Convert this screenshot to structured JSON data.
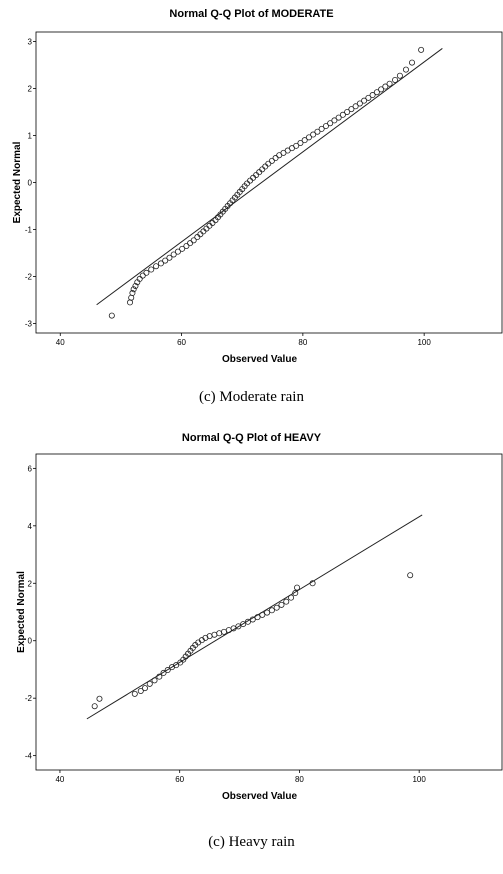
{
  "chart_data": [
    {
      "type": "scatter",
      "title": "Normal Q-Q Plot of MODERATE",
      "xlabel": "Observed Value",
      "ylabel": "Expected Normal",
      "caption": "(c) Moderate rain",
      "xlim": [
        36,
        113
      ],
      "ylim": [
        -3.2,
        3.2
      ],
      "xticks": [
        40,
        60,
        80,
        100
      ],
      "yticks": [
        3,
        2,
        1,
        0,
        -1,
        -2,
        -3
      ],
      "reference_line": {
        "x": [
          46,
          103
        ],
        "y": [
          -2.6,
          2.85
        ]
      },
      "points": [
        [
          48.5,
          -2.83
        ],
        [
          51.5,
          -2.55
        ],
        [
          51.7,
          -2.45
        ],
        [
          51.9,
          -2.35
        ],
        [
          52.1,
          -2.27
        ],
        [
          52.4,
          -2.2
        ],
        [
          52.7,
          -2.12
        ],
        [
          53.1,
          -2.05
        ],
        [
          53.6,
          -1.98
        ],
        [
          54.2,
          -1.92
        ],
        [
          55,
          -1.85
        ],
        [
          55.8,
          -1.78
        ],
        [
          56.6,
          -1.72
        ],
        [
          57.3,
          -1.66
        ],
        [
          58,
          -1.6
        ],
        [
          58.7,
          -1.53
        ],
        [
          59.4,
          -1.47
        ],
        [
          60.1,
          -1.41
        ],
        [
          60.8,
          -1.35
        ],
        [
          61.4,
          -1.29
        ],
        [
          62,
          -1.23
        ],
        [
          62.6,
          -1.16
        ],
        [
          63.1,
          -1.1
        ],
        [
          63.6,
          -1.04
        ],
        [
          64.1,
          -0.98
        ],
        [
          64.6,
          -0.92
        ],
        [
          65.1,
          -0.86
        ],
        [
          65.6,
          -0.8
        ],
        [
          66,
          -0.74
        ],
        [
          66.4,
          -0.68
        ],
        [
          66.8,
          -0.62
        ],
        [
          67.2,
          -0.56
        ],
        [
          67.6,
          -0.5
        ],
        [
          68,
          -0.44
        ],
        [
          68.4,
          -0.38
        ],
        [
          68.8,
          -0.32
        ],
        [
          69.2,
          -0.26
        ],
        [
          69.6,
          -0.2
        ],
        [
          70,
          -0.14
        ],
        [
          70.4,
          -0.08
        ],
        [
          70.8,
          -0.02
        ],
        [
          71.3,
          0.04
        ],
        [
          71.8,
          0.1
        ],
        [
          72.3,
          0.16
        ],
        [
          72.8,
          0.22
        ],
        [
          73.3,
          0.28
        ],
        [
          73.8,
          0.34
        ],
        [
          74.3,
          0.4
        ],
        [
          74.9,
          0.46
        ],
        [
          75.5,
          0.52
        ],
        [
          76.1,
          0.58
        ],
        [
          76.8,
          0.63
        ],
        [
          77.5,
          0.68
        ],
        [
          78.2,
          0.73
        ],
        [
          78.9,
          0.78
        ],
        [
          79.6,
          0.84
        ],
        [
          80.3,
          0.9
        ],
        [
          81,
          0.96
        ],
        [
          81.7,
          1.02
        ],
        [
          82.4,
          1.08
        ],
        [
          83.1,
          1.14
        ],
        [
          83.8,
          1.2
        ],
        [
          84.5,
          1.26
        ],
        [
          85.2,
          1.32
        ],
        [
          85.9,
          1.38
        ],
        [
          86.6,
          1.44
        ],
        [
          87.3,
          1.5
        ],
        [
          88,
          1.56
        ],
        [
          88.7,
          1.62
        ],
        [
          89.4,
          1.68
        ],
        [
          90.1,
          1.74
        ],
        [
          90.8,
          1.8
        ],
        [
          91.5,
          1.86
        ],
        [
          92.2,
          1.92
        ],
        [
          92.9,
          1.98
        ],
        [
          93.6,
          2.04
        ],
        [
          94.3,
          2.1
        ],
        [
          95.2,
          2.18
        ],
        [
          96,
          2.27
        ],
        [
          97,
          2.4
        ],
        [
          98,
          2.55
        ],
        [
          99.5,
          2.82
        ]
      ]
    },
    {
      "type": "scatter",
      "title": "Normal Q-Q Plot of HEAVY",
      "xlabel": "Observed Value",
      "ylabel": "Expected Normal",
      "caption": "(c)    Heavy rain",
      "xlim": [
        36,
        114
      ],
      "ylim": [
        -4.5,
        6.5
      ],
      "xticks": [
        40,
        60,
        80,
        100
      ],
      "yticks": [
        6,
        4,
        2,
        0,
        -2,
        -4
      ],
      "reference_line": {
        "x": [
          44.5,
          100.5
        ],
        "y": [
          -2.72,
          4.38
        ]
      },
      "points": [
        [
          45.8,
          -2.28
        ],
        [
          46.6,
          -2.02
        ],
        [
          52.5,
          -1.85
        ],
        [
          53.5,
          -1.75
        ],
        [
          54.2,
          -1.65
        ],
        [
          55,
          -1.5
        ],
        [
          55.8,
          -1.38
        ],
        [
          56.6,
          -1.25
        ],
        [
          57.3,
          -1.12
        ],
        [
          58,
          -1.02
        ],
        [
          58.7,
          -0.92
        ],
        [
          59.4,
          -0.85
        ],
        [
          60.1,
          -0.76
        ],
        [
          60.6,
          -0.66
        ],
        [
          61,
          -0.55
        ],
        [
          61.4,
          -0.45
        ],
        [
          61.8,
          -0.35
        ],
        [
          62.2,
          -0.25
        ],
        [
          62.6,
          -0.15
        ],
        [
          63.1,
          -0.06
        ],
        [
          63.7,
          0.02
        ],
        [
          64.3,
          0.1
        ],
        [
          65,
          0.16
        ],
        [
          65.8,
          0.21
        ],
        [
          66.6,
          0.26
        ],
        [
          67.4,
          0.31
        ],
        [
          68.2,
          0.37
        ],
        [
          69,
          0.43
        ],
        [
          69.8,
          0.5
        ],
        [
          70.6,
          0.58
        ],
        [
          71.4,
          0.66
        ],
        [
          72.2,
          0.74
        ],
        [
          73,
          0.82
        ],
        [
          73.8,
          0.9
        ],
        [
          74.6,
          0.98
        ],
        [
          75.4,
          1.06
        ],
        [
          76.2,
          1.15
        ],
        [
          77,
          1.25
        ],
        [
          77.8,
          1.36
        ],
        [
          78.6,
          1.5
        ],
        [
          79.3,
          1.66
        ],
        [
          79.6,
          1.85
        ],
        [
          82.2,
          2.0
        ],
        [
          98.5,
          2.28
        ]
      ]
    }
  ]
}
